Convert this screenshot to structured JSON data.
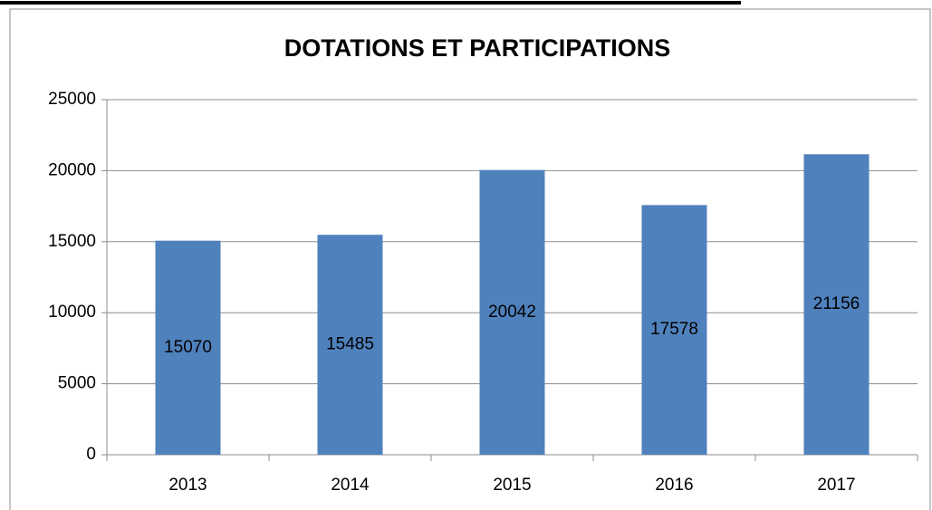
{
  "chart_data": {
    "type": "bar",
    "title": "DOTATIONS ET PARTICIPATIONS",
    "categories": [
      "2013",
      "2014",
      "2015",
      "2016",
      "2017"
    ],
    "values": [
      15070,
      15485,
      20042,
      17578,
      21156
    ],
    "color": "#4f81bd",
    "ylim": [
      0,
      25000
    ],
    "yticks": [
      0,
      5000,
      10000,
      15000,
      20000,
      25000
    ],
    "grid": true
  }
}
